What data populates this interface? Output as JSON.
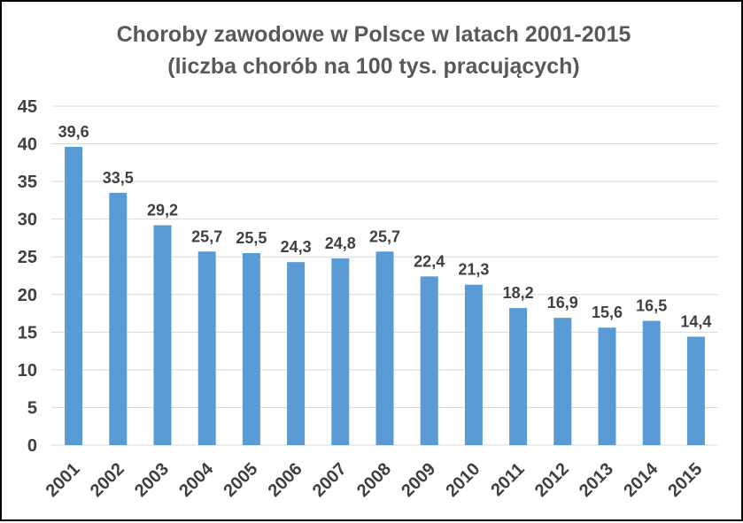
{
  "chart_data": {
    "type": "bar",
    "title": "Choroby zawodowe w Polsce w latach 2001-2015",
    "subtitle": "(liczba chorób na 100 tys. pracujących)",
    "categories": [
      "2001",
      "2002",
      "2003",
      "2004",
      "2005",
      "2006",
      "2007",
      "2008",
      "2009",
      "2010",
      "2011",
      "2012",
      "2013",
      "2014",
      "2015"
    ],
    "values": [
      39.6,
      33.5,
      29.2,
      25.7,
      25.5,
      24.3,
      24.8,
      25.7,
      22.4,
      21.3,
      18.2,
      16.9,
      15.6,
      16.5,
      14.4
    ],
    "data_labels": [
      "39,6",
      "33,5",
      "29,2",
      "25,7",
      "25,5",
      "24,3",
      "24,8",
      "25,7",
      "22,4",
      "21,3",
      "18,2",
      "16,9",
      "15,6",
      "16,5",
      "14,4"
    ],
    "y_ticks": [
      "0",
      "5",
      "10",
      "15",
      "20",
      "25",
      "30",
      "35",
      "40",
      "45"
    ],
    "ylim": [
      0,
      45
    ],
    "xlabel": "",
    "ylabel": "",
    "grid": true,
    "legend": "none",
    "bar_color": "#5b9bd5",
    "grid_color": "#d9d9d9"
  }
}
